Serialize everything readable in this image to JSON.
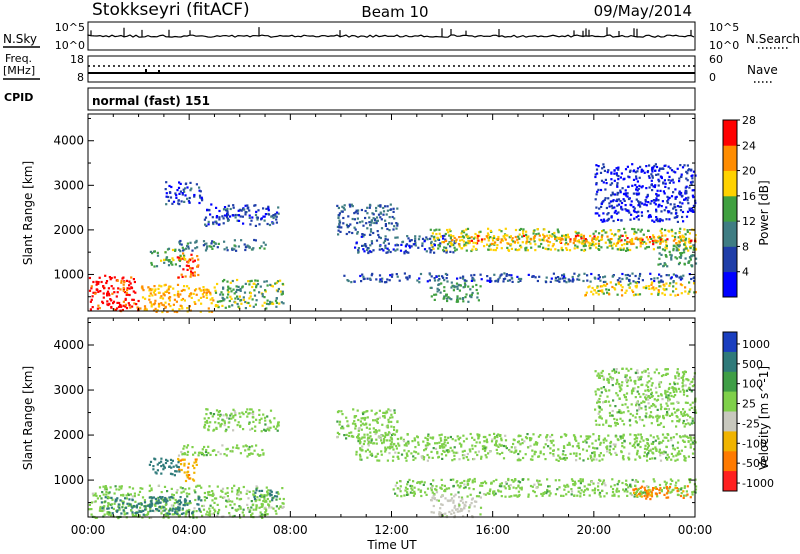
{
  "header": {
    "station": "Stokkseyri (fitACF)",
    "beam": "Beam 10",
    "date": "09/May/2014"
  },
  "status_panels": {
    "nsky": {
      "label": "N.Sky",
      "y_ticks": [
        "10^5",
        "10^0"
      ],
      "right_ticks": [
        "10^5",
        "10^0"
      ],
      "right_label": "N.Search",
      "right_legend_style": "dotted"
    },
    "freq": {
      "label_line1": "Freq.",
      "label_line2": "[MHz]",
      "y_ticks": [
        "18",
        "8"
      ],
      "right_ticks": [
        "60",
        "0"
      ],
      "right_label": "Nave",
      "right_legend_style": "dotted"
    },
    "cpid": {
      "label": "CPID",
      "value": "normal (fast) 151"
    }
  },
  "chart_data": [
    {
      "type": "heatmap",
      "name": "power",
      "xlabel": "",
      "ylabel": "Slant Range [km]",
      "xlim": [
        0,
        24
      ],
      "ylim": [
        180,
        4600
      ],
      "yticks": [
        1000,
        2000,
        3000,
        4000
      ],
      "colorbar": {
        "label": "Power [dB]",
        "ticks": [
          "4",
          "8",
          "12",
          "16",
          "20",
          "24",
          "28"
        ],
        "colors": [
          "#0000ff",
          "#1f3ea8",
          "#3f7d83",
          "#40a040",
          "#ffd200",
          "#ff8c00",
          "#ff0000"
        ]
      },
      "regions": [
        {
          "t": [
            0.0,
            2.0
          ],
          "r": [
            180,
            1000
          ],
          "level": 26
        },
        {
          "t": [
            2.0,
            5.0
          ],
          "r": [
            180,
            800
          ],
          "level": 20
        },
        {
          "t": [
            5.0,
            7.7
          ],
          "r": [
            250,
            900
          ],
          "level": 14
        },
        {
          "t": [
            3.5,
            4.4
          ],
          "r": [
            900,
            1500
          ],
          "level": 24
        },
        {
          "t": [
            2.4,
            3.8
          ],
          "r": [
            1200,
            1600
          ],
          "level": 14
        },
        {
          "t": [
            3.5,
            7.0
          ],
          "r": [
            1550,
            1800
          ],
          "level": 10
        },
        {
          "t": [
            4.5,
            7.5
          ],
          "r": [
            2100,
            2600
          ],
          "level": 6
        },
        {
          "t": [
            3.0,
            4.5
          ],
          "r": [
            2600,
            3100
          ],
          "level": 5
        },
        {
          "t": [
            9.8,
            12.2
          ],
          "r": [
            1900,
            2600
          ],
          "level": 8
        },
        {
          "t": [
            10.5,
            14.5
          ],
          "r": [
            1500,
            1900
          ],
          "level": 7
        },
        {
          "t": [
            13.5,
            24.0
          ],
          "r": [
            1550,
            2050
          ],
          "level": 16
        },
        {
          "t": [
            14.0,
            24.0
          ],
          "r": [
            1700,
            1900
          ],
          "level": 22
        },
        {
          "t": [
            10.0,
            24.0
          ],
          "r": [
            850,
            1050
          ],
          "level": 7
        },
        {
          "t": [
            13.5,
            15.5
          ],
          "r": [
            400,
            850
          ],
          "level": 12
        },
        {
          "t": [
            19.5,
            24.0
          ],
          "r": [
            550,
            850
          ],
          "level": 18
        },
        {
          "t": [
            22.5,
            24.0
          ],
          "r": [
            1200,
            1700
          ],
          "level": 12
        },
        {
          "t": [
            20.0,
            24.0
          ],
          "r": [
            2200,
            3500
          ],
          "level": 4
        }
      ]
    },
    {
      "type": "heatmap",
      "name": "velocity",
      "xlabel": "Time UT",
      "ylabel": "Slant Range [km]",
      "xlim": [
        0,
        24
      ],
      "ylim": [
        180,
        4600
      ],
      "xticks": [
        "00:00",
        "04:00",
        "08:00",
        "12:00",
        "16:00",
        "20:00",
        "00:00"
      ],
      "yticks": [
        1000,
        2000,
        3000,
        4000
      ],
      "colorbar": {
        "label": "Velocity [m s^-1]",
        "ticks": [
          "1000",
          "500",
          "100",
          "25",
          "-25",
          "-100",
          "-500",
          "-1000"
        ],
        "colors": [
          "#1a3ebf",
          "#2f7a7a",
          "#3f9e46",
          "#7fd04a",
          "#c8c8be",
          "#f0b400",
          "#ff7a00",
          "#ff2020"
        ]
      },
      "regions": [
        {
          "t": [
            0.0,
            7.7
          ],
          "r": [
            180,
            900
          ],
          "level": 0
        },
        {
          "t": [
            0.5,
            4.5
          ],
          "r": [
            250,
            650
          ],
          "level": 200
        },
        {
          "t": [
            6.5,
            7.5
          ],
          "r": [
            550,
            800
          ],
          "level": 150
        },
        {
          "t": [
            3.5,
            4.3
          ],
          "r": [
            1000,
            1500
          ],
          "level": -400
        },
        {
          "t": [
            2.4,
            3.6
          ],
          "r": [
            1100,
            1500
          ],
          "level": 250
        },
        {
          "t": [
            3.5,
            7.0
          ],
          "r": [
            1550,
            1800
          ],
          "level": 0
        },
        {
          "t": [
            4.5,
            7.5
          ],
          "r": [
            2100,
            2600
          ],
          "level": 0
        },
        {
          "t": [
            9.8,
            12.2
          ],
          "r": [
            1900,
            2600
          ],
          "level": 0
        },
        {
          "t": [
            10.5,
            24.0
          ],
          "r": [
            1450,
            2050
          ],
          "level": 0
        },
        {
          "t": [
            12.0,
            24.0
          ],
          "r": [
            650,
            1050
          ],
          "level": 0
        },
        {
          "t": [
            13.5,
            15.5
          ],
          "r": [
            200,
            700
          ],
          "level": -50
        },
        {
          "t": [
            21.5,
            23.8
          ],
          "r": [
            600,
            900
          ],
          "level": -600
        },
        {
          "t": [
            20.0,
            24.0
          ],
          "r": [
            2200,
            3500
          ],
          "level": 0
        }
      ]
    }
  ]
}
